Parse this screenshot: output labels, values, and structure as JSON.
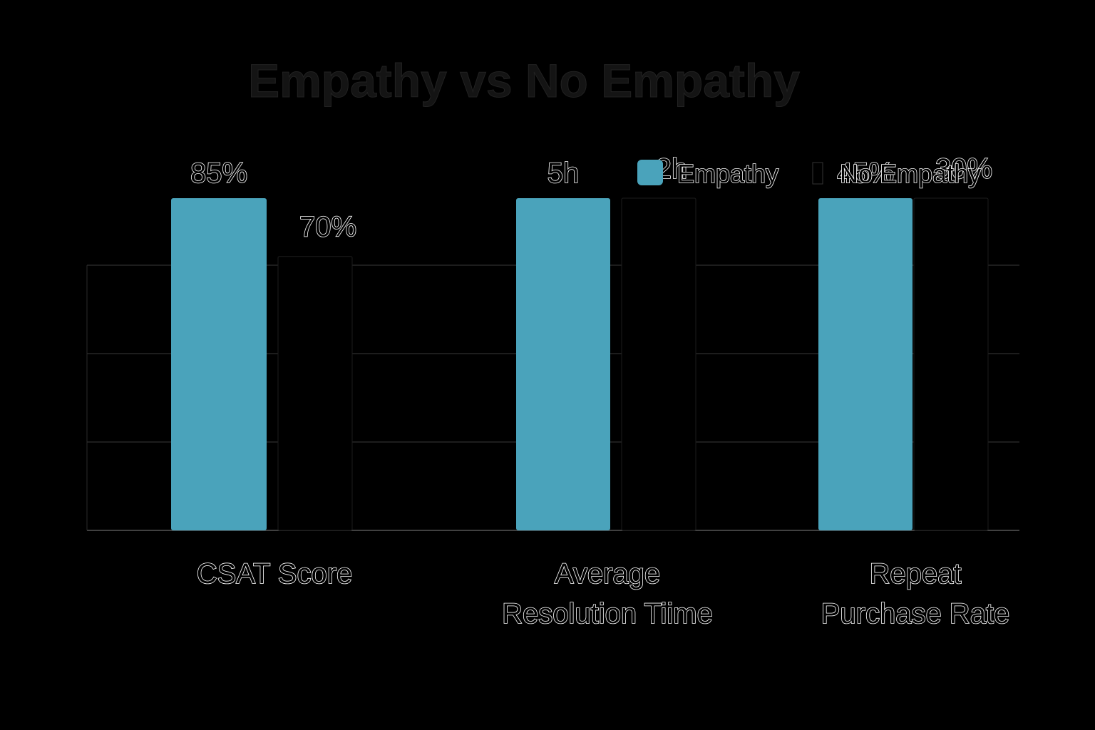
{
  "chart_data": {
    "type": "bar",
    "title": "Empathy vs No Empathy",
    "categories": [
      [
        "CSAT Score"
      ],
      [
        "Average",
        "Resolution Tiime"
      ],
      [
        "Repeat",
        "Purchase Rate"
      ]
    ],
    "series": [
      {
        "name": "Empathy",
        "values": [
          85,
          5,
          45
        ],
        "labels": [
          "85%",
          "5h",
          "45%"
        ],
        "color": "#4aa3bb"
      },
      {
        "name": "No Empathy",
        "values": [
          70,
          2,
          30
        ],
        "labels": [
          "70%",
          "2h",
          "30%"
        ],
        "color": "#000000"
      }
    ],
    "xlabel": "",
    "ylabel": "",
    "grid": true,
    "legend": "top-right"
  }
}
